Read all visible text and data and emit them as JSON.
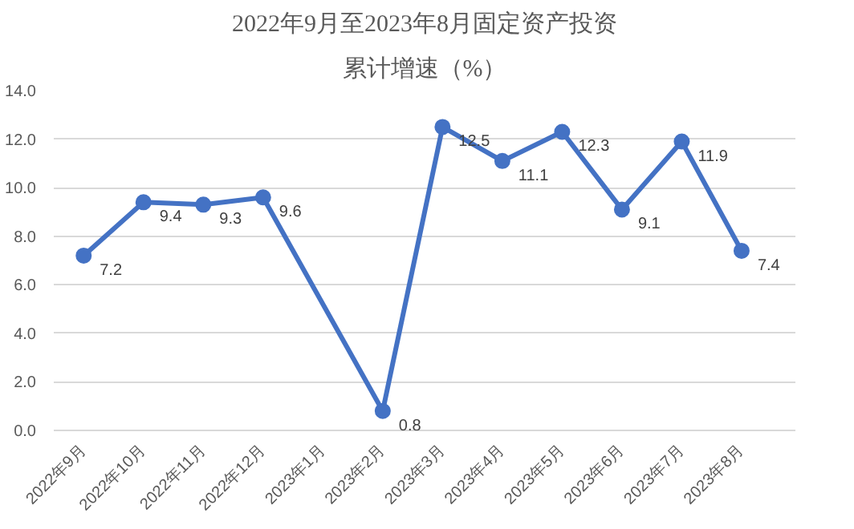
{
  "chart_data": {
    "type": "line",
    "title": "2022年9月至2023年8月固定资产投资",
    "subtitle": "累计增速（%）",
    "categories": [
      "2022年9月",
      "2022年10月",
      "2022年11月",
      "2022年12月",
      "2023年1月",
      "2023年2月",
      "2023年3月",
      "2023年4月",
      "2023年5月",
      "2023年6月",
      "2023年7月",
      "2023年8月"
    ],
    "series": [
      {
        "color": "#4472c4",
        "values": [
          7.2,
          9.4,
          9.3,
          9.6,
          null,
          0.8,
          12.5,
          11.1,
          12.3,
          9.1,
          11.9,
          7.4
        ]
      }
    ],
    "ylim": [
      0,
      14
    ],
    "yticks": [
      {
        "value": 0,
        "label": "0.0"
      },
      {
        "value": 2,
        "label": "2.0"
      },
      {
        "value": 4,
        "label": "4.0"
      },
      {
        "value": 6,
        "label": "6.0"
      },
      {
        "value": 8,
        "label": "8.0"
      },
      {
        "value": 10,
        "label": "10.0"
      },
      {
        "value": 12,
        "label": "12.0"
      },
      {
        "value": 14,
        "label": "14.0"
      }
    ],
    "grid": "y",
    "marker": "circle",
    "data_labels": true
  }
}
